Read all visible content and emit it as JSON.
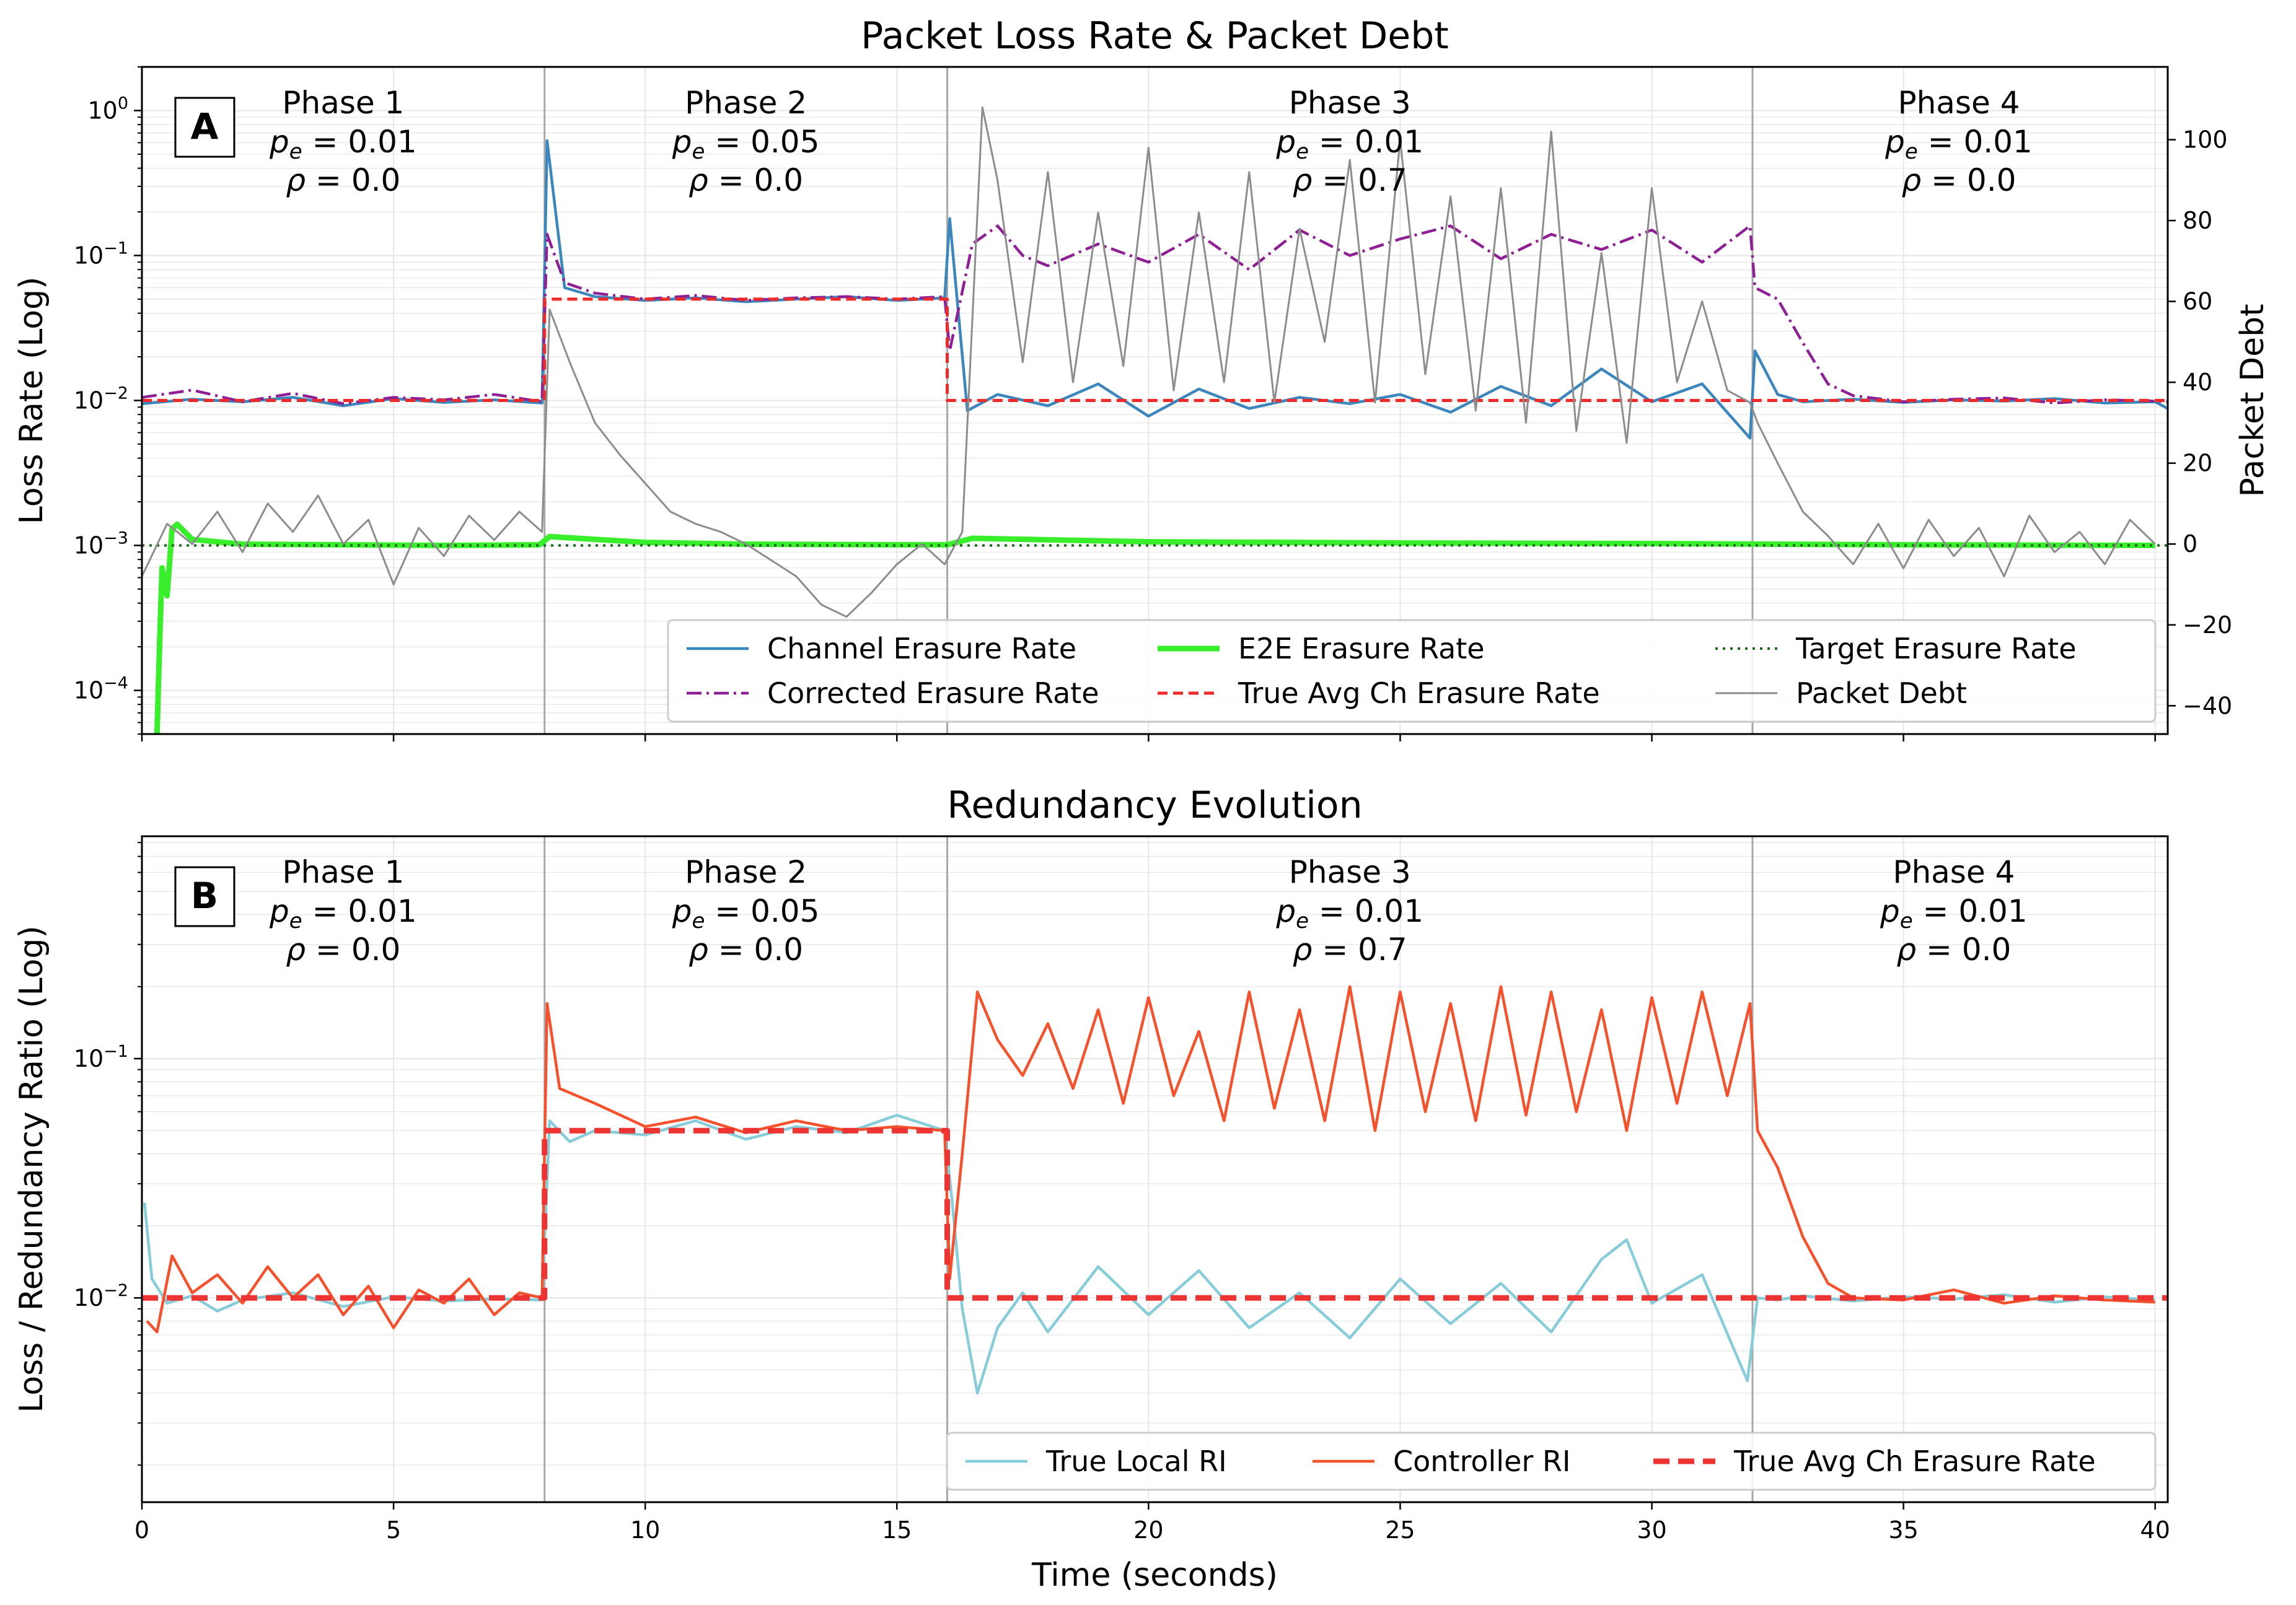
{
  "colors": {
    "channel": "#3b86bd",
    "corrected": "#8e1f94",
    "e2e": "#39ef2b",
    "true_avg": "#ef2a2a",
    "target": "#1d6a1d",
    "debt": "#8c8c8c",
    "local_ri": "#86ccd9",
    "controller_ri": "#f4512c",
    "true_avg_b": "#ee3333",
    "phase_line": "#a8a8a8",
    "grid": "#e6e6e6"
  },
  "chart_data": [
    {
      "type": "line",
      "panel_label": "A",
      "title": "Packet Loss Rate & Packet Debt",
      "xlabel": "",
      "ylabel": "Loss Rate (Log)",
      "y2label": "Packet Debt",
      "yscale": "log",
      "xlim": [
        0,
        40.25
      ],
      "ylim": [
        5e-05,
        2.0
      ],
      "y2lim": [
        -47,
        118
      ],
      "grid": true,
      "legend_position": "lower-right",
      "legend_columns": 3,
      "x_ticks": [
        0,
        5,
        10,
        15,
        20,
        25,
        30,
        35,
        40
      ],
      "y_ticks": [
        {
          "value": 1,
          "mantissa": "10",
          "exp": "0"
        },
        {
          "value": 0.1,
          "mantissa": "10",
          "exp": "−1"
        },
        {
          "value": 0.01,
          "mantissa": "10",
          "exp": "−2"
        },
        {
          "value": 0.001,
          "mantissa": "10",
          "exp": "−3"
        },
        {
          "value": 0.0001,
          "mantissa": "10",
          "exp": "−4"
        }
      ],
      "y2_ticks": [
        {
          "value": 100,
          "label": "100"
        },
        {
          "value": 80,
          "label": "80"
        },
        {
          "value": 60,
          "label": "60"
        },
        {
          "value": 40,
          "label": "40"
        },
        {
          "value": 20,
          "label": "20"
        },
        {
          "value": 0,
          "label": "0"
        },
        {
          "value": -20,
          "label": "−20"
        },
        {
          "value": -40,
          "label": "−40"
        }
      ],
      "phase_boundaries": [
        8,
        16,
        32
      ],
      "phases": [
        {
          "x": 4,
          "name": "Phase 1",
          "pe": "0.01",
          "rho": "0.0"
        },
        {
          "x": 12,
          "name": "Phase 2",
          "pe": "0.05",
          "rho": "0.0"
        },
        {
          "x": 24,
          "name": "Phase 3",
          "pe": "0.01",
          "rho": "0.7"
        },
        {
          "x": 36.1,
          "name": "Phase 4",
          "pe": "0.01",
          "rho": "0.0"
        }
      ],
      "series": [
        {
          "name": "Channel Erasure Rate",
          "style": "solid",
          "axis": "left",
          "x": [
            0,
            1,
            2,
            3,
            4,
            5,
            6,
            7,
            7.95,
            8.05,
            8.4,
            9,
            10,
            11,
            12,
            13,
            14,
            15,
            15.95,
            16.05,
            16.4,
            17,
            18,
            19,
            20,
            21,
            22,
            23,
            24,
            25,
            26,
            27,
            28,
            29,
            30,
            31,
            31.95,
            32.05,
            32.5,
            33,
            34,
            35,
            36,
            37,
            38,
            39,
            40,
            40.25
          ],
          "y": [
            0.0095,
            0.0102,
            0.0098,
            0.0105,
            0.0092,
            0.0103,
            0.0097,
            0.0101,
            0.0096,
            0.62,
            0.06,
            0.052,
            0.049,
            0.051,
            0.048,
            0.05,
            0.052,
            0.049,
            0.051,
            0.18,
            0.0085,
            0.011,
            0.0092,
            0.013,
            0.0078,
            0.012,
            0.0088,
            0.0105,
            0.0095,
            0.011,
            0.0083,
            0.0125,
            0.0092,
            0.0165,
            0.0098,
            0.013,
            0.0055,
            0.022,
            0.011,
            0.0098,
            0.0102,
            0.0097,
            0.0101,
            0.0099,
            0.0103,
            0.0096,
            0.0098,
            0.0088
          ]
        },
        {
          "name": "Corrected Erasure Rate",
          "style": "dashdot",
          "axis": "left",
          "x": [
            0,
            1,
            2,
            3,
            4,
            5,
            6,
            7,
            7.95,
            8.05,
            8.4,
            9,
            10,
            11,
            12,
            13,
            14,
            15,
            15.95,
            16.05,
            16.5,
            17,
            17.5,
            18,
            19,
            20,
            21,
            22,
            23,
            24,
            25,
            26,
            27,
            28,
            29,
            30,
            31,
            31.95,
            32.05,
            32.5,
            33,
            33.5,
            34,
            35,
            36,
            37,
            38,
            39,
            40,
            40.25
          ],
          "y": [
            0.0105,
            0.0118,
            0.0098,
            0.0112,
            0.0095,
            0.0105,
            0.0101,
            0.011,
            0.0098,
            0.14,
            0.065,
            0.055,
            0.05,
            0.053,
            0.049,
            0.051,
            0.052,
            0.05,
            0.052,
            0.022,
            0.12,
            0.16,
            0.1,
            0.085,
            0.12,
            0.09,
            0.14,
            0.08,
            0.15,
            0.1,
            0.13,
            0.16,
            0.095,
            0.14,
            0.11,
            0.15,
            0.09,
            0.16,
            0.06,
            0.05,
            0.025,
            0.013,
            0.0108,
            0.0098,
            0.0102,
            0.0104,
            0.0096,
            0.0101,
            0.0099,
            0.0098
          ]
        },
        {
          "name": "E2E Erasure Rate",
          "style": "solid-thick",
          "axis": "left",
          "x": [
            0.3,
            0.35,
            0.4,
            0.5,
            0.6,
            0.7,
            1,
            2,
            4,
            6,
            7.9,
            8.1,
            10,
            12,
            15,
            16,
            16.5,
            20,
            25,
            30,
            35,
            40
          ],
          "y": [
            5e-05,
            0.0002,
            0.0007,
            0.00045,
            0.0013,
            0.0014,
            0.0011,
            0.00102,
            0.00101,
            0.001,
            0.00101,
            0.00115,
            0.00105,
            0.00102,
            0.00101,
            0.00101,
            0.00112,
            0.00106,
            0.00104,
            0.00103,
            0.00101,
            0.001
          ]
        },
        {
          "name": "True Avg Ch Erasure Rate",
          "style": "dashed",
          "axis": "left",
          "x": [
            0,
            8,
            8,
            16,
            16,
            32,
            32,
            40.25
          ],
          "y": [
            0.01,
            0.01,
            0.05,
            0.05,
            0.01,
            0.01,
            0.01,
            0.01
          ]
        },
        {
          "name": "Target Erasure Rate",
          "style": "dotted",
          "axis": "left",
          "x": [
            0,
            40.25
          ],
          "y": [
            0.001,
            0.001
          ]
        },
        {
          "name": "Packet Debt",
          "style": "solid-thin",
          "axis": "right",
          "x": [
            0,
            0.5,
            1,
            1.5,
            2,
            2.5,
            3,
            3.5,
            4,
            4.5,
            5,
            5.5,
            6,
            6.5,
            7,
            7.5,
            7.95,
            8.1,
            8.5,
            9,
            9.5,
            10,
            10.5,
            11,
            11.5,
            12,
            12.5,
            13,
            13.5,
            14,
            14.5,
            15,
            15.5,
            15.95,
            16.3,
            16.7,
            17,
            17.5,
            18,
            18.5,
            19,
            19.5,
            20,
            20.5,
            21,
            21.5,
            22,
            22.5,
            23,
            23.5,
            24,
            24.5,
            25,
            25.5,
            26,
            26.5,
            27,
            27.5,
            28,
            28.5,
            29,
            29.5,
            30,
            30.5,
            31,
            31.5,
            31.95,
            32.1,
            32.5,
            33,
            33.5,
            34,
            34.5,
            35,
            35.5,
            36,
            36.5,
            37,
            37.5,
            38,
            38.5,
            39,
            39.5,
            40
          ],
          "y": [
            -8,
            5,
            0,
            8,
            -2,
            10,
            3,
            12,
            0,
            6,
            -10,
            4,
            -3,
            7,
            1,
            8,
            3,
            58,
            45,
            30,
            22,
            15,
            8,
            5,
            3,
            0,
            -4,
            -8,
            -15,
            -18,
            -12,
            -5,
            0,
            -5,
            3,
            108,
            90,
            45,
            92,
            40,
            82,
            44,
            98,
            38,
            82,
            40,
            92,
            35,
            78,
            50,
            95,
            35,
            100,
            42,
            86,
            33,
            88,
            30,
            102,
            28,
            72,
            25,
            88,
            40,
            60,
            38,
            35,
            30,
            20,
            8,
            2,
            -5,
            5,
            -6,
            6,
            -3,
            4,
            -8,
            7,
            -2,
            3,
            -5,
            6,
            0
          ]
        }
      ]
    },
    {
      "type": "line",
      "panel_label": "B",
      "title": "Redundancy Evolution",
      "xlabel": "Time (seconds)",
      "ylabel": "Loss / Redundancy Ratio (Log)",
      "yscale": "log",
      "xlim": [
        0,
        40.25
      ],
      "ylim": [
        0.0014,
        0.85
      ],
      "grid": true,
      "legend_position": "lower-right",
      "legend_columns": 3,
      "x_ticks": [
        0,
        5,
        10,
        15,
        20,
        25,
        30,
        35,
        40
      ],
      "y_ticks": [
        {
          "value": 0.1,
          "mantissa": "10",
          "exp": "−1"
        },
        {
          "value": 0.01,
          "mantissa": "10",
          "exp": "−2"
        }
      ],
      "phase_boundaries": [
        8,
        16,
        32
      ],
      "phases": [
        {
          "x": 4,
          "name": "Phase 1",
          "pe": "0.01",
          "rho": "0.0"
        },
        {
          "x": 12,
          "name": "Phase 2",
          "pe": "0.05",
          "rho": "0.0"
        },
        {
          "x": 24,
          "name": "Phase 3",
          "pe": "0.01",
          "rho": "0.7"
        },
        {
          "x": 36,
          "name": "Phase 4",
          "pe": "0.01",
          "rho": "0.0"
        }
      ],
      "series": [
        {
          "name": "True Local RI",
          "style": "solid",
          "axis": "left",
          "x": [
            0.05,
            0.2,
            0.5,
            1,
            1.5,
            2,
            3,
            4,
            5,
            6,
            7,
            7.95,
            8.1,
            8.5,
            9,
            10,
            11,
            12,
            13,
            14,
            15,
            15.95,
            16.1,
            16.3,
            16.6,
            17,
            17.5,
            18,
            19,
            20,
            21,
            22,
            23,
            24,
            25,
            26,
            27,
            28,
            29,
            29.5,
            30,
            31,
            31.9,
            32.1,
            32.5,
            33,
            34,
            35,
            36,
            37,
            38,
            39,
            40
          ],
          "y": [
            0.025,
            0.012,
            0.0095,
            0.0102,
            0.0088,
            0.0098,
            0.0105,
            0.0092,
            0.0101,
            0.0097,
            0.0099,
            0.0098,
            0.055,
            0.045,
            0.05,
            0.048,
            0.055,
            0.046,
            0.052,
            0.049,
            0.058,
            0.05,
            0.025,
            0.009,
            0.004,
            0.0075,
            0.0105,
            0.0072,
            0.0135,
            0.0085,
            0.013,
            0.0075,
            0.0105,
            0.0068,
            0.012,
            0.0078,
            0.0115,
            0.0072,
            0.0145,
            0.0175,
            0.0095,
            0.0125,
            0.0045,
            0.01,
            0.0098,
            0.0102,
            0.0097,
            0.0101,
            0.0099,
            0.0103,
            0.0096,
            0.0101,
            0.0098
          ]
        },
        {
          "name": "Controller RI",
          "style": "solid",
          "axis": "left",
          "x": [
            0.1,
            0.3,
            0.6,
            1,
            1.5,
            2,
            2.5,
            3,
            3.5,
            4,
            4.5,
            5,
            5.5,
            6,
            6.5,
            7,
            7.5,
            7.95,
            8.05,
            8.3,
            9,
            10,
            11,
            12,
            13,
            14,
            15,
            15.95,
            16.05,
            16.3,
            16.6,
            17,
            17.5,
            18,
            18.5,
            19,
            19.5,
            20,
            20.5,
            21,
            21.5,
            22,
            22.5,
            23,
            23.5,
            24,
            24.5,
            25,
            25.5,
            26,
            26.5,
            27,
            27.5,
            28,
            28.5,
            29,
            29.5,
            30,
            30.5,
            31,
            31.5,
            31.95,
            32.1,
            32.5,
            33,
            33.5,
            34,
            35,
            36,
            37,
            38,
            39,
            40
          ],
          "y": [
            0.008,
            0.0072,
            0.015,
            0.0105,
            0.0125,
            0.0095,
            0.0135,
            0.01,
            0.0125,
            0.0085,
            0.0112,
            0.0075,
            0.0108,
            0.0095,
            0.012,
            0.0085,
            0.0105,
            0.01,
            0.17,
            0.075,
            0.065,
            0.052,
            0.057,
            0.049,
            0.055,
            0.05,
            0.052,
            0.05,
            0.012,
            0.04,
            0.19,
            0.12,
            0.085,
            0.14,
            0.075,
            0.16,
            0.065,
            0.18,
            0.07,
            0.13,
            0.055,
            0.19,
            0.062,
            0.16,
            0.055,
            0.2,
            0.05,
            0.19,
            0.06,
            0.17,
            0.055,
            0.2,
            0.058,
            0.19,
            0.06,
            0.16,
            0.05,
            0.18,
            0.065,
            0.19,
            0.07,
            0.17,
            0.05,
            0.035,
            0.018,
            0.0115,
            0.01,
            0.0098,
            0.0108,
            0.0095,
            0.0102,
            0.0098,
            0.0096
          ]
        },
        {
          "name": "True Avg Ch Erasure Rate",
          "style": "dashed-thick",
          "axis": "left",
          "x": [
            0,
            8,
            8,
            16,
            16,
            32,
            32,
            40.25
          ],
          "y": [
            0.01,
            0.01,
            0.05,
            0.05,
            0.01,
            0.01,
            0.01,
            0.01
          ]
        }
      ]
    }
  ]
}
